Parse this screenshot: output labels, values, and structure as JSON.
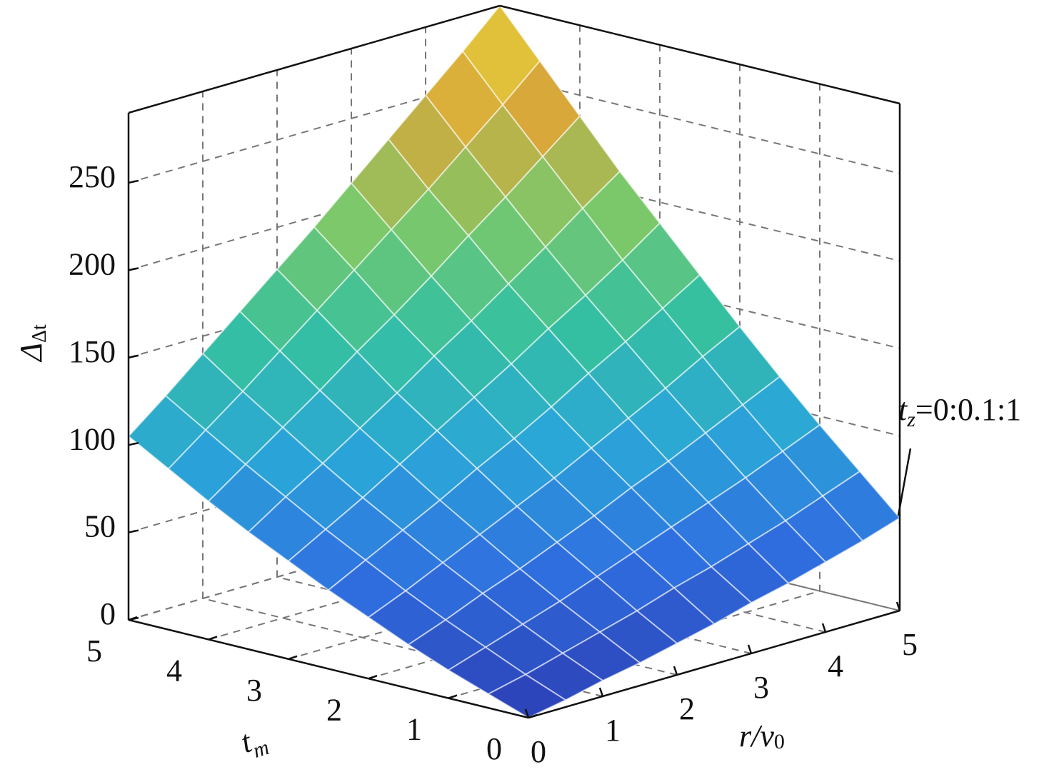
{
  "chart_data": {
    "type": "surface",
    "zlabel": {
      "symbol": "Δ",
      "sub": "Δt"
    },
    "xlabel": {
      "text": "r/v",
      "sub": "0"
    },
    "ylabel": {
      "text": "t",
      "sub": "m"
    },
    "annotation": {
      "var": "t",
      "sub": "z",
      "text": "=0:0.1:1"
    },
    "x": [
      0,
      0.5,
      1,
      1.5,
      2,
      2.5,
      3,
      3.5,
      4,
      4.5,
      5
    ],
    "y": [
      0,
      0.5,
      1,
      1.5,
      2,
      2.5,
      3,
      3.5,
      4,
      4.5,
      5
    ],
    "z": [
      [
        0,
        4,
        9,
        13,
        18,
        23,
        29,
        34,
        40,
        46,
        53
      ],
      [
        8,
        13,
        19,
        25,
        31,
        38,
        44,
        51,
        58,
        66,
        74
      ],
      [
        16,
        23,
        30,
        37,
        45,
        53,
        61,
        69,
        77,
        86,
        95
      ],
      [
        25,
        33,
        42,
        50,
        59,
        68,
        78,
        87,
        97,
        107,
        117
      ],
      [
        35,
        44,
        54,
        64,
        74,
        84,
        95,
        106,
        117,
        129,
        140
      ],
      [
        45,
        56,
        67,
        78,
        90,
        101,
        113,
        126,
        138,
        151,
        164
      ],
      [
        56,
        68,
        80,
        93,
        106,
        119,
        132,
        146,
        159,
        173,
        188
      ],
      [
        67,
        81,
        94,
        108,
        122,
        137,
        151,
        166,
        181,
        197,
        212
      ],
      [
        79,
        94,
        109,
        124,
        140,
        155,
        171,
        188,
        204,
        221,
        238
      ],
      [
        92,
        108,
        124,
        141,
        158,
        175,
        192,
        209,
        227,
        245,
        264
      ],
      [
        105,
        122,
        140,
        158,
        176,
        194,
        213,
        232,
        251,
        270,
        290
      ]
    ],
    "xlim": [
      0,
      5
    ],
    "ylim": [
      0,
      5
    ],
    "zlim": [
      0,
      290
    ],
    "xticks": [
      0,
      1,
      2,
      3,
      4,
      5
    ],
    "yticks": [
      0,
      1,
      2,
      3,
      4,
      5
    ],
    "zticks": [
      0,
      50,
      100,
      150,
      200,
      250
    ],
    "grid": true,
    "colormap": [
      "#2c3fb4",
      "#2f6fe0",
      "#2aa6d8",
      "#35c0a0",
      "#7cc86a",
      "#d8a83a",
      "#e8d838"
    ]
  }
}
